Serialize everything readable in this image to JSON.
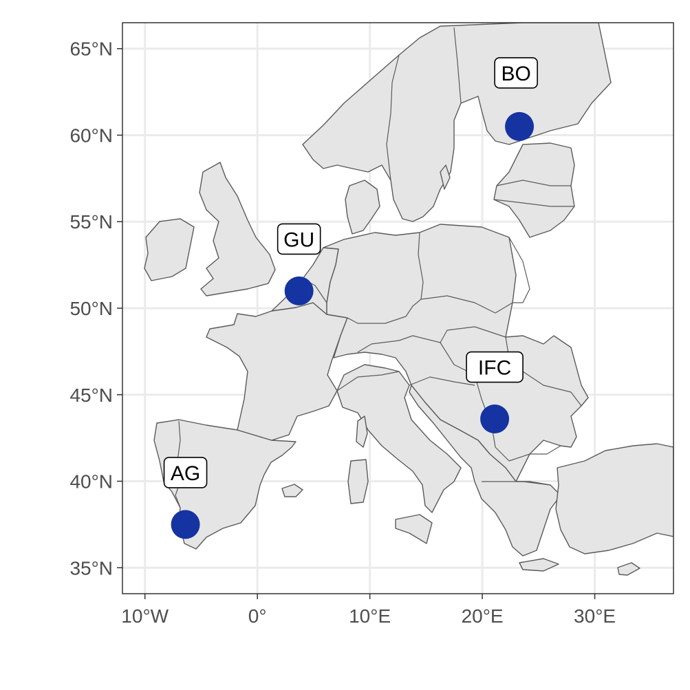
{
  "map": {
    "type": "point-map",
    "xlim": [
      -12,
      37
    ],
    "ylim": [
      33.5,
      66.5
    ],
    "x_ticks": [
      {
        "value": -10,
        "label": "10°W"
      },
      {
        "value": 0,
        "label": "0°"
      },
      {
        "value": 10,
        "label": "10°E"
      },
      {
        "value": 20,
        "label": "20°E"
      },
      {
        "value": 30,
        "label": "30°E"
      }
    ],
    "y_ticks": [
      {
        "value": 35,
        "label": "35°N"
      },
      {
        "value": 40,
        "label": "40°N"
      },
      {
        "value": 45,
        "label": "45°N"
      },
      {
        "value": 50,
        "label": "50°N"
      },
      {
        "value": 55,
        "label": "55°N"
      },
      {
        "value": 60,
        "label": "60°N"
      },
      {
        "value": 65,
        "label": "65°N"
      }
    ],
    "grid": true,
    "colors": {
      "point": "#1533a1",
      "land": "#e5e5e5",
      "border": "#5a5a5a",
      "grid": "#ebebeb"
    },
    "sites": [
      {
        "label": "BO",
        "lon": 23.3,
        "lat": 60.5,
        "label_lon": 23.0,
        "label_lat": 63.6
      },
      {
        "label": "GU",
        "lon": 3.7,
        "lat": 51.0,
        "label_lon": 3.7,
        "label_lat": 54.0
      },
      {
        "label": "IFC",
        "lon": 21.1,
        "lat": 43.6,
        "label_lon": 21.1,
        "label_lat": 46.6
      },
      {
        "label": "AG",
        "lon": -6.4,
        "lat": 37.5,
        "label_lon": -6.4,
        "label_lat": 40.5
      }
    ]
  }
}
